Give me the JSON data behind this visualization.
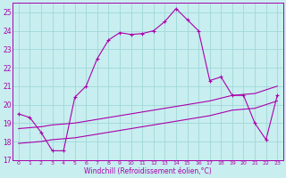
{
  "xlabel": "Windchill (Refroidissement éolien,°C)",
  "xlim": [
    -0.5,
    23.5
  ],
  "ylim": [
    17,
    25.5
  ],
  "yticks": [
    17,
    18,
    19,
    20,
    21,
    22,
    23,
    24,
    25
  ],
  "xticks": [
    0,
    1,
    2,
    3,
    4,
    5,
    6,
    7,
    8,
    9,
    10,
    11,
    12,
    13,
    14,
    15,
    16,
    17,
    18,
    19,
    20,
    21,
    22,
    23
  ],
  "bg_color": "#c8eef0",
  "grid_color": "#a0d8d8",
  "line_color": "#aa00aa",
  "line1_x": [
    0,
    1,
    2,
    3,
    4,
    5,
    6,
    7,
    8,
    9,
    10,
    11,
    12,
    13,
    14,
    15,
    16,
    17,
    18,
    19,
    20,
    21,
    22,
    23
  ],
  "line1_y": [
    19.5,
    19.3,
    18.5,
    17.5,
    17.5,
    20.4,
    21.0,
    22.5,
    23.5,
    23.9,
    23.8,
    23.85,
    24.0,
    24.5,
    25.2,
    24.6,
    24.0,
    21.3,
    21.5,
    20.5,
    20.5,
    19.0,
    18.1,
    20.5
  ],
  "line2_x": [
    0,
    1,
    2,
    3,
    4,
    5,
    6,
    7,
    8,
    9,
    10,
    11,
    12,
    13,
    14,
    15,
    16,
    17,
    18,
    19,
    20,
    21,
    22,
    23
  ],
  "line2_y": [
    18.7,
    18.75,
    18.8,
    18.9,
    18.95,
    19.0,
    19.1,
    19.2,
    19.3,
    19.4,
    19.5,
    19.6,
    19.7,
    19.8,
    19.9,
    20.0,
    20.1,
    20.2,
    20.35,
    20.5,
    20.55,
    20.6,
    20.8,
    21.0
  ],
  "line3_x": [
    0,
    1,
    2,
    3,
    4,
    5,
    6,
    7,
    8,
    9,
    10,
    11,
    12,
    13,
    14,
    15,
    16,
    17,
    18,
    19,
    20,
    21,
    22,
    23
  ],
  "line3_y": [
    17.9,
    17.95,
    18.0,
    18.1,
    18.15,
    18.2,
    18.3,
    18.4,
    18.5,
    18.6,
    18.7,
    18.8,
    18.9,
    19.0,
    19.1,
    19.2,
    19.3,
    19.4,
    19.55,
    19.7,
    19.75,
    19.8,
    20.0,
    20.2
  ]
}
